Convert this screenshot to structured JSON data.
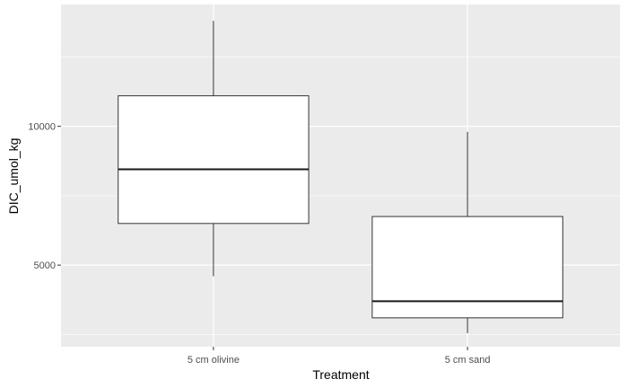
{
  "chart_data": {
    "type": "boxplot",
    "title": "",
    "xlabel": "Treatment",
    "ylabel": "DIC_umol_kg",
    "categories": [
      "5 cm olivine",
      "5 cm sand"
    ],
    "boxes": [
      {
        "category": "5 cm olivine",
        "min": 4600,
        "q1": 6500,
        "median": 8450,
        "q3": 11100,
        "max": 13800
      },
      {
        "category": "5 cm sand",
        "min": 2550,
        "q1": 3100,
        "median": 3700,
        "q3": 6750,
        "max": 9800
      }
    ],
    "ylim": [
      2060,
      14390
    ],
    "yticks": [
      5000,
      10000
    ],
    "yticks_minor": [
      2500,
      7500,
      12500
    ],
    "ytick_labels": [
      "5000",
      "10000"
    ],
    "grid": true,
    "legend": "none",
    "colors": {
      "panel_background": "#ebebeb",
      "grid": "#ffffff",
      "box_fill": "#ffffff",
      "box_line": "#333333",
      "median_line": "#1a1a1a",
      "tick_label": "#4d4d4d"
    }
  }
}
